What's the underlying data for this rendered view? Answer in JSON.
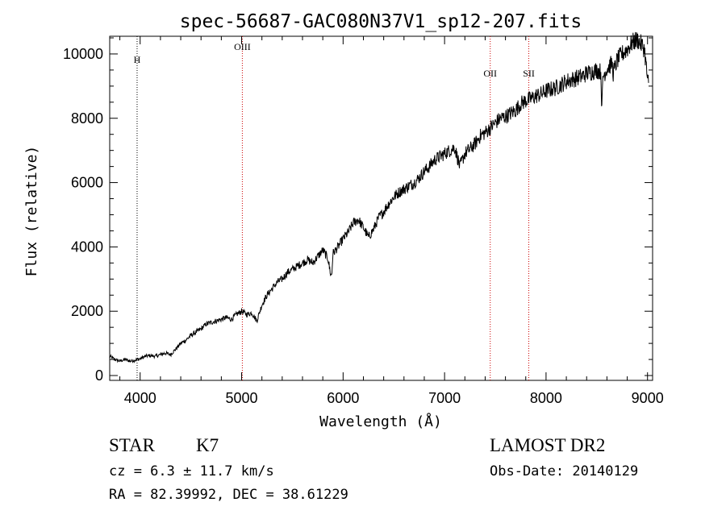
{
  "chart_data": {
    "type": "line",
    "title": "spec-56687-GAC080N37V1_sp12-207.fits",
    "xlabel": "Wavelength (Å)",
    "ylabel": "Flux (relative)",
    "xlim": [
      3700,
      9050
    ],
    "ylim": [
      -150,
      10550
    ],
    "xticks": [
      4000,
      5000,
      6000,
      7000,
      8000,
      9000
    ],
    "yticks": [
      0,
      2000,
      4000,
      6000,
      8000,
      10000
    ],
    "grid": false,
    "lines": [
      {
        "name": "H",
        "x": 3970,
        "color": "#000000"
      },
      {
        "name": "OIII",
        "x": 5007,
        "color": "#cc0000"
      },
      {
        "name": "OII",
        "x": 7450,
        "color": "#cc0000"
      },
      {
        "name": "SII",
        "x": 7830,
        "color": "#cc0000"
      }
    ],
    "series": [
      {
        "color": "#000000",
        "x": [
          3700,
          3750,
          3800,
          3850,
          3900,
          3950,
          4000,
          4050,
          4100,
          4150,
          4200,
          4250,
          4300,
          4350,
          4400,
          4450,
          4500,
          4550,
          4600,
          4650,
          4700,
          4750,
          4800,
          4850,
          4900,
          4950,
          5000,
          5050,
          5100,
          5150,
          5200,
          5250,
          5300,
          5350,
          5400,
          5450,
          5500,
          5550,
          5600,
          5650,
          5700,
          5750,
          5800,
          5850,
          5880,
          5890,
          5900,
          5950,
          6000,
          6050,
          6100,
          6150,
          6200,
          6250,
          6300,
          6350,
          6400,
          6450,
          6500,
          6550,
          6600,
          6650,
          6700,
          6750,
          6800,
          6850,
          6900,
          6950,
          7000,
          7050,
          7100,
          7150,
          7200,
          7250,
          7300,
          7350,
          7400,
          7450,
          7500,
          7550,
          7600,
          7650,
          7700,
          7750,
          7800,
          7850,
          7900,
          7950,
          8000,
          8050,
          8100,
          8150,
          8200,
          8250,
          8300,
          8350,
          8400,
          8450,
          8500,
          8540,
          8550,
          8560,
          8600,
          8650,
          8662,
          8700,
          8750,
          8800,
          8850,
          8900,
          8950,
          8970,
          9000,
          9010
        ],
        "y": [
          600,
          500,
          450,
          500,
          450,
          480,
          520,
          600,
          620,
          600,
          650,
          700,
          650,
          820,
          1000,
          1100,
          1250,
          1350,
          1450,
          1600,
          1650,
          1700,
          1750,
          1800,
          1750,
          1900,
          2000,
          1900,
          1950,
          1700,
          2200,
          2500,
          2700,
          2900,
          3000,
          3200,
          3300,
          3400,
          3500,
          3600,
          3500,
          3700,
          3900,
          3650,
          3100,
          3200,
          3800,
          4000,
          4250,
          4450,
          4750,
          4850,
          4600,
          4300,
          4550,
          4900,
          5100,
          5350,
          5550,
          5700,
          5800,
          5900,
          6000,
          6150,
          6350,
          6500,
          6700,
          6800,
          6900,
          7000,
          7100,
          6500,
          6900,
          7050,
          7200,
          7450,
          7550,
          7700,
          7850,
          8000,
          8050,
          8150,
          8250,
          8450,
          8550,
          8600,
          8700,
          8750,
          8850,
          8900,
          8950,
          9050,
          9150,
          9200,
          9250,
          9300,
          9400,
          9450,
          9500,
          9450,
          8200,
          9300,
          9550,
          9700,
          9400,
          9800,
          10000,
          10150,
          10350,
          10450,
          10250,
          10150,
          9200,
          9100
        ]
      }
    ]
  },
  "footer": {
    "object_class": "STAR",
    "subclass": "K7",
    "redshift": "cz =  6.3 ± 11.7 km/s",
    "coords": "RA =  82.39992, DEC =  38.61229",
    "survey": "LAMOST DR2",
    "obs_date": "Obs-Date: 20140129"
  }
}
